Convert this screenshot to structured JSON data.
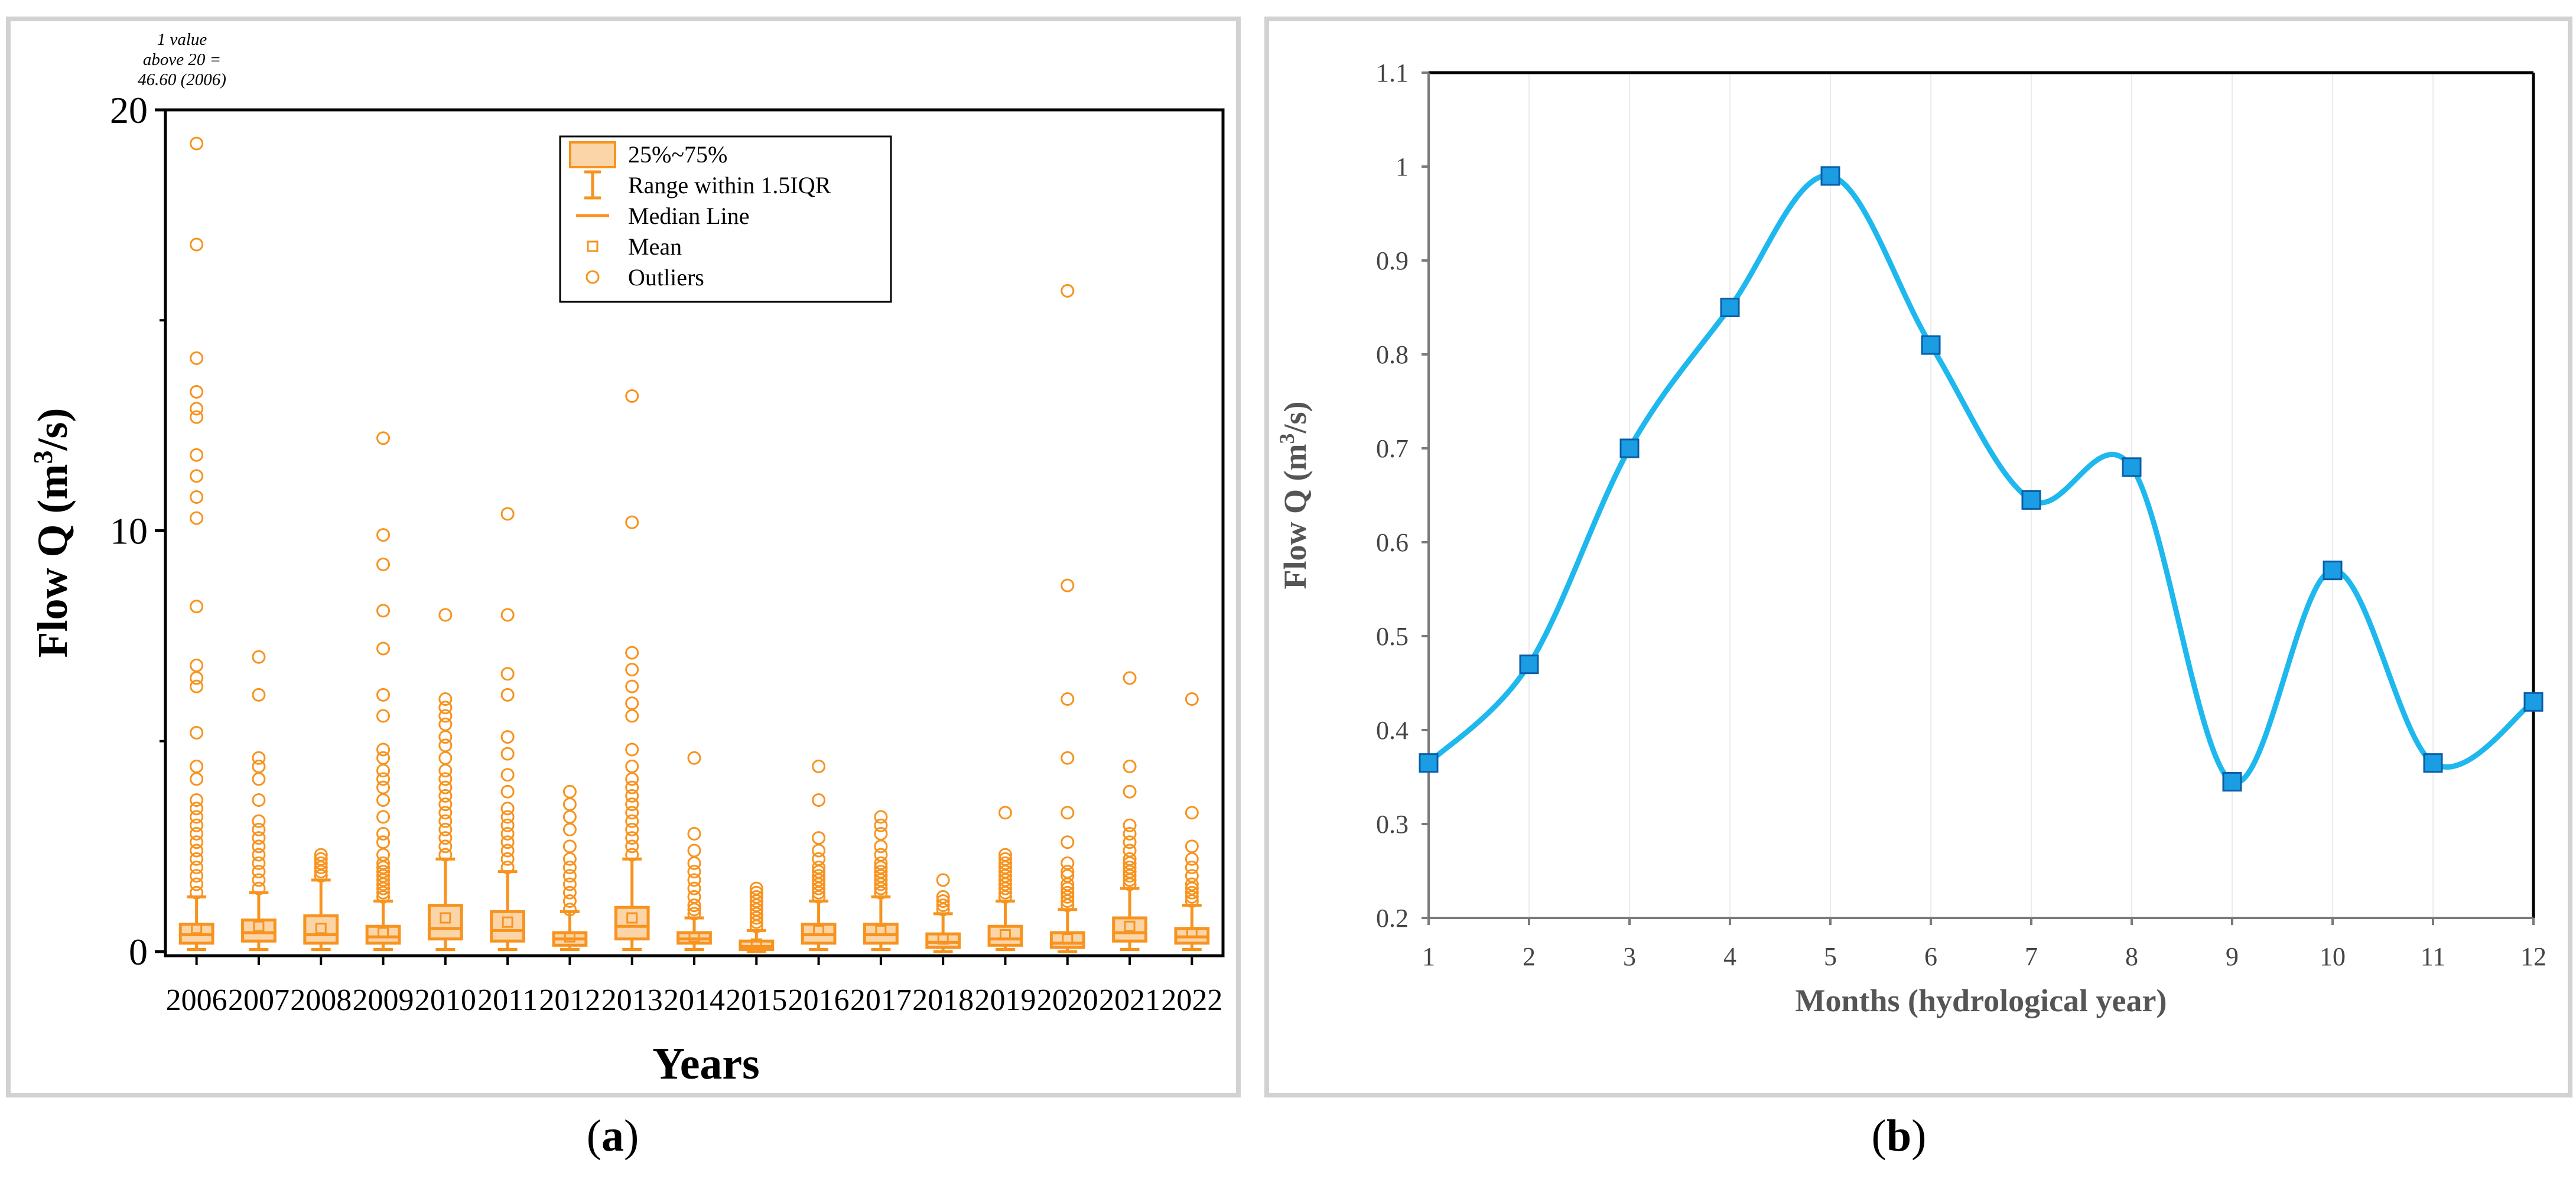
{
  "captions": {
    "a_open": "(",
    "a_letter": "a",
    "a_close": ")",
    "b_open": "(",
    "b_letter": "b",
    "b_close": ")"
  },
  "colors": {
    "box_orange": "#f7931e",
    "box_fill": "#fbd5a8",
    "line_blue": "#1eb8ee",
    "marker_blue": "#1a9de3",
    "marker_stroke": "#0a5ea8",
    "axis_gray": "#7a7a7a",
    "grid_gray": "#d9d9d9"
  },
  "chart_data": [
    {
      "type": "box",
      "panel": "a",
      "xlabel": "Years",
      "ylabel_prefix": "Flow Q (m",
      "ylabel_sup": "3",
      "ylabel_suffix": "/s)",
      "ylim": [
        0,
        20
      ],
      "yticks": [
        0,
        10,
        20
      ],
      "annotation": [
        "1 value",
        "above 20 =",
        "46.60 (2006)"
      ],
      "legend": {
        "position": "top-center",
        "entries": [
          "25%~75%",
          "Range within 1.5IQR",
          "Median Line",
          "Mean",
          "Outliers"
        ]
      },
      "categories": [
        "2006",
        "2007",
        "2008",
        "2009",
        "2010",
        "2011",
        "2012",
        "2013",
        "2014",
        "2015",
        "2016",
        "2017",
        "2018",
        "2019",
        "2020",
        "2021",
        "2022"
      ],
      "boxes": [
        {
          "year": "2006",
          "q1": 0.2,
          "median": 0.4,
          "q3": 0.65,
          "mean": 0.55,
          "low": 0.05,
          "high": 1.3,
          "outliers": [
            1.4,
            1.6,
            1.8,
            2.0,
            2.2,
            2.4,
            2.6,
            2.8,
            3.0,
            3.2,
            3.4,
            3.6,
            4.1,
            4.4,
            5.2,
            6.3,
            6.5,
            6.8,
            8.2,
            10.3,
            10.8,
            11.3,
            11.8,
            12.7,
            12.9,
            13.3,
            14.1,
            16.8,
            19.2
          ]
        },
        {
          "year": "2007",
          "q1": 0.25,
          "median": 0.45,
          "q3": 0.75,
          "mean": 0.6,
          "low": 0.05,
          "high": 1.4,
          "outliers": [
            1.5,
            1.7,
            1.9,
            2.1,
            2.3,
            2.5,
            2.7,
            2.9,
            3.1,
            3.6,
            4.1,
            4.4,
            4.6,
            6.1,
            7.0
          ]
        },
        {
          "year": "2008",
          "q1": 0.2,
          "median": 0.4,
          "q3": 0.85,
          "mean": 0.55,
          "low": 0.05,
          "high": 1.7,
          "outliers": [
            1.8,
            1.9,
            2.0,
            2.1,
            2.2,
            2.3
          ]
        },
        {
          "year": "2009",
          "q1": 0.2,
          "median": 0.35,
          "q3": 0.6,
          "mean": 0.45,
          "low": 0.05,
          "high": 1.2,
          "outliers": [
            1.3,
            1.4,
            1.5,
            1.6,
            1.7,
            1.8,
            1.9,
            2.0,
            2.1,
            2.3,
            2.6,
            2.8,
            3.2,
            3.6,
            3.9,
            4.1,
            4.3,
            4.6,
            4.8,
            5.6,
            6.1,
            7.2,
            8.1,
            9.2,
            9.9,
            12.2
          ]
        },
        {
          "year": "2010",
          "q1": 0.3,
          "median": 0.55,
          "q3": 1.1,
          "mean": 0.8,
          "low": 0.05,
          "high": 2.2,
          "outliers": [
            2.3,
            2.5,
            2.7,
            2.9,
            3.1,
            3.3,
            3.5,
            3.7,
            3.9,
            4.1,
            4.3,
            4.6,
            4.9,
            5.1,
            5.4,
            5.6,
            5.8,
            6.0,
            8.0
          ]
        },
        {
          "year": "2011",
          "q1": 0.25,
          "median": 0.5,
          "q3": 0.95,
          "mean": 0.7,
          "low": 0.05,
          "high": 1.9,
          "outliers": [
            2.0,
            2.2,
            2.4,
            2.6,
            2.8,
            3.0,
            3.2,
            3.4,
            3.8,
            4.2,
            4.7,
            5.1,
            6.1,
            6.6,
            8.0,
            10.4
          ]
        },
        {
          "year": "2012",
          "q1": 0.15,
          "median": 0.3,
          "q3": 0.45,
          "mean": 0.35,
          "low": 0.05,
          "high": 0.95,
          "outliers": [
            1.0,
            1.2,
            1.4,
            1.6,
            1.8,
            2.0,
            2.2,
            2.5,
            2.9,
            3.2,
            3.5,
            3.8
          ]
        },
        {
          "year": "2013",
          "q1": 0.3,
          "median": 0.6,
          "q3": 1.05,
          "mean": 0.8,
          "low": 0.05,
          "high": 2.2,
          "outliers": [
            2.3,
            2.5,
            2.7,
            2.9,
            3.1,
            3.3,
            3.5,
            3.7,
            3.9,
            4.1,
            4.4,
            4.8,
            5.6,
            5.9,
            6.3,
            6.7,
            7.1,
            10.2,
            13.2
          ]
        },
        {
          "year": "2014",
          "q1": 0.2,
          "median": 0.3,
          "q3": 0.45,
          "mean": 0.35,
          "low": 0.05,
          "high": 0.8,
          "outliers": [
            0.9,
            1.0,
            1.1,
            1.3,
            1.5,
            1.7,
            1.9,
            2.1,
            2.4,
            2.8,
            4.6
          ]
        },
        {
          "year": "2015",
          "q1": 0.05,
          "median": 0.12,
          "q3": 0.25,
          "mean": 0.18,
          "low": 0.0,
          "high": 0.5,
          "outliers": [
            0.6,
            0.7,
            0.8,
            0.9,
            1.0,
            1.1,
            1.2,
            1.3,
            1.4,
            1.5
          ]
        },
        {
          "year": "2016",
          "q1": 0.2,
          "median": 0.4,
          "q3": 0.65,
          "mean": 0.5,
          "low": 0.05,
          "high": 1.2,
          "outliers": [
            1.3,
            1.4,
            1.5,
            1.6,
            1.7,
            1.8,
            1.9,
            2.0,
            2.2,
            2.4,
            2.7,
            3.6,
            4.4
          ]
        },
        {
          "year": "2017",
          "q1": 0.2,
          "median": 0.4,
          "q3": 0.65,
          "mean": 0.5,
          "low": 0.05,
          "high": 1.3,
          "outliers": [
            1.4,
            1.5,
            1.6,
            1.7,
            1.8,
            1.9,
            2.0,
            2.1,
            2.3,
            2.5,
            2.8,
            3.0,
            3.2
          ]
        },
        {
          "year": "2018",
          "q1": 0.1,
          "median": 0.22,
          "q3": 0.42,
          "mean": 0.3,
          "low": 0.0,
          "high": 0.9,
          "outliers": [
            1.0,
            1.1,
            1.2,
            1.3,
            1.7
          ]
        },
        {
          "year": "2019",
          "q1": 0.15,
          "median": 0.3,
          "q3": 0.6,
          "mean": 0.4,
          "low": 0.05,
          "high": 1.2,
          "outliers": [
            1.3,
            1.4,
            1.5,
            1.6,
            1.7,
            1.8,
            1.9,
            2.0,
            2.1,
            2.2,
            2.3,
            3.3
          ]
        },
        {
          "year": "2020",
          "q1": 0.1,
          "median": 0.2,
          "q3": 0.45,
          "mean": 0.3,
          "low": 0.0,
          "high": 1.0,
          "outliers": [
            1.1,
            1.2,
            1.3,
            1.4,
            1.5,
            1.6,
            1.8,
            1.9,
            2.1,
            2.6,
            3.3,
            4.6,
            6.0,
            8.7,
            15.7
          ]
        },
        {
          "year": "2021",
          "q1": 0.25,
          "median": 0.45,
          "q3": 0.8,
          "mean": 0.6,
          "low": 0.05,
          "high": 1.5,
          "outliers": [
            1.6,
            1.7,
            1.8,
            1.9,
            2.0,
            2.1,
            2.2,
            2.4,
            2.6,
            2.8,
            3.0,
            3.8,
            4.4,
            6.5
          ]
        },
        {
          "year": "2022",
          "q1": 0.2,
          "median": 0.35,
          "q3": 0.55,
          "mean": 0.45,
          "low": 0.05,
          "high": 1.1,
          "outliers": [
            1.2,
            1.3,
            1.4,
            1.5,
            1.6,
            1.8,
            2.0,
            2.2,
            2.5,
            3.3,
            6.0
          ]
        }
      ]
    },
    {
      "type": "line",
      "panel": "b",
      "xlabel": "Months (hydrological year)",
      "ylabel_prefix": "Flow Q (m",
      "ylabel_sup": "3",
      "ylabel_suffix": "/s)",
      "x": [
        1,
        2,
        3,
        4,
        5,
        6,
        7,
        8,
        9,
        10,
        11,
        12
      ],
      "xtick_labels": [
        "1",
        "2",
        "3",
        "4",
        "5",
        "6",
        "7",
        "8",
        "9",
        "10",
        "11",
        "12"
      ],
      "y": [
        0.365,
        0.47,
        0.7,
        0.85,
        0.99,
        0.81,
        0.645,
        0.68,
        0.345,
        0.57,
        0.365,
        0.43
      ],
      "ylim": [
        0.2,
        1.1
      ],
      "yticks": [
        0.2,
        0.3,
        0.4,
        0.5,
        0.6,
        0.7,
        0.8,
        0.9,
        1.0,
        1.1
      ],
      "ytick_labels": [
        "0.2",
        "0.3",
        "0.4",
        "0.5",
        "0.6",
        "0.7",
        "0.8",
        "0.9",
        "1",
        "1.1"
      ],
      "smooth": true,
      "marker": "square"
    }
  ]
}
